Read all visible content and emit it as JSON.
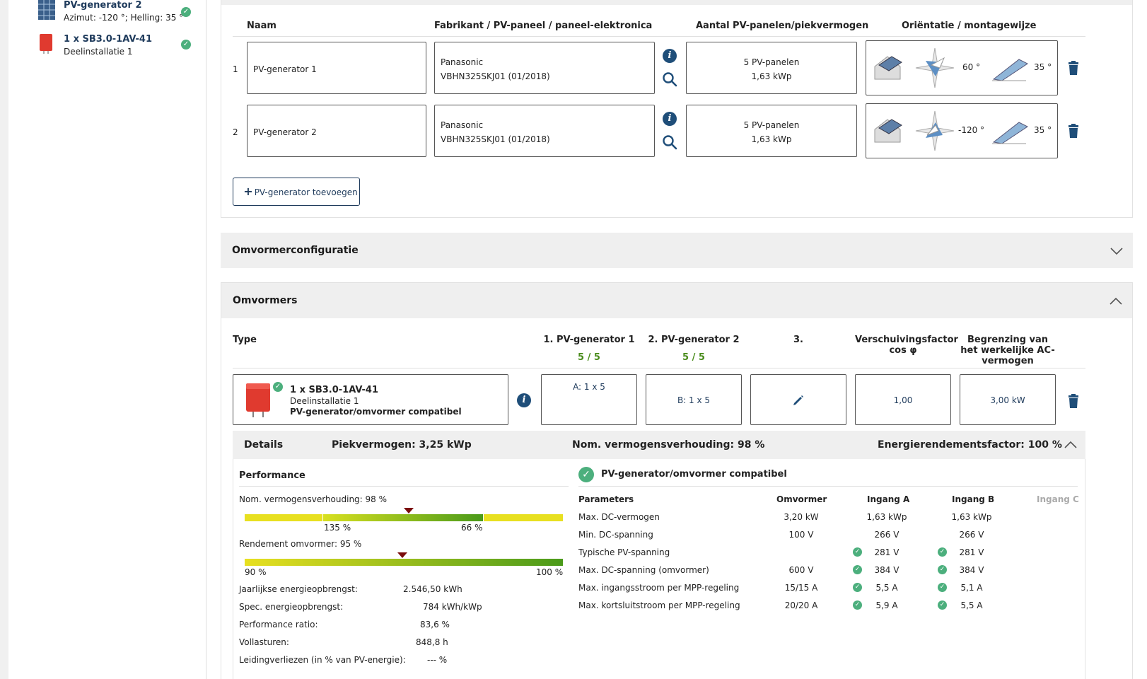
{
  "sidebar": {
    "items": [
      {
        "title": "PV-generator 2",
        "sub": "Azimut: -120 °; Helling: 35 °"
      },
      {
        "title": "1 x SB3.0-1AV-41",
        "sub": "Deelinstallatie 1"
      }
    ]
  },
  "pvgen": {
    "headers": {
      "naam": "Naam",
      "fabrikant": "Fabrikant / PV-paneel / paneel-elektronica",
      "aantal": "Aantal PV-panelen/piekvermogen",
      "orientatie": "Oriëntatie / montagewijze"
    },
    "rows": [
      {
        "num": "1",
        "naam": "PV-generator 1",
        "fab1": "Panasonic",
        "fab2": "VBHN325SKJ01 (01/2018)",
        "count": "5 PV-panelen",
        "power": "1,63 kWp",
        "azimuth": "60 °",
        "tilt": "35 °"
      },
      {
        "num": "2",
        "naam": "PV-generator 2",
        "fab1": "Panasonic",
        "fab2": "VBHN325SKJ01 (01/2018)",
        "count": "5 PV-panelen",
        "power": "1,63 kWp",
        "azimuth": "-120 °",
        "tilt": "35 °"
      }
    ],
    "add_button": "PV-generator toevoegen"
  },
  "sections": {
    "omvormerconfig": "Omvormerconfiguratie",
    "omvormers": "Omvormers"
  },
  "inverters": {
    "headers": {
      "type": "Type",
      "gen1": "1. PV-generator 1",
      "gen2": "2. PV-generator 2",
      "gen3": "3.",
      "cos": "Verschuivingsfactor cos φ",
      "limit": "Begrenzing van het werkelijke AC-vermogen"
    },
    "gen1_count": "5 / 5",
    "gen2_count": "5 / 5",
    "row": {
      "title": "1 x SB3.0-1AV-41",
      "sub": "Deelinstallatie 1",
      "compat": "PV-generator/omvormer compatibel",
      "a": "A: 1 x 5",
      "b": "B: 1 x 5",
      "cos": "1,00",
      "limit": "3,00 kW"
    }
  },
  "details": {
    "label": "Details",
    "peak": "Piekvermogen: 3,25 kWp",
    "ratio": "Nom. vermogensverhouding: 98 %",
    "efficiency": "Energierendementsfactor: 100 %"
  },
  "performance": {
    "title": "Performance",
    "ratio_label": "Nom. vermogensverhouding: 98 %",
    "ratio_left": "135 %",
    "ratio_right": "66 %",
    "rend_label": "Rendement omvormer: 95 %",
    "rend_left": "90 %",
    "rend_right": "100 %",
    "stats": [
      {
        "label": "Jaarlijkse energieopbrengst:",
        "value": "2.546,50 kWh"
      },
      {
        "label": "Spec. energieopbrengst:",
        "value": "784 kWh/kWp"
      },
      {
        "label": "Performance ratio:",
        "value": "83,6 %"
      },
      {
        "label": "Vollasturen:",
        "value": "848,8 h"
      },
      {
        "label": "Leidingverliezen (in % van PV-energie):",
        "value": "--- %"
      }
    ]
  },
  "compat": {
    "title": "PV-generator/omvormer compatibel",
    "headers": {
      "param": "Parameters",
      "omvormer": "Omvormer",
      "a": "Ingang A",
      "b": "Ingang B",
      "c": "Ingang C"
    },
    "rows": [
      {
        "param": "Max. DC-vermogen",
        "omv": "3,20 kW",
        "a": "1,63 kWp",
        "b": "1,63 kWp",
        "check": false
      },
      {
        "param": "Min. DC-spanning",
        "omv": "100 V",
        "a": "266 V",
        "b": "266 V",
        "check": false
      },
      {
        "param": "Typische PV-spanning",
        "omv": "",
        "a": "281 V",
        "b": "281 V",
        "check": true
      },
      {
        "param": "Max. DC-spanning (omvormer)",
        "omv": "600 V",
        "a": "384 V",
        "b": "384 V",
        "check": true
      },
      {
        "param": "Max. ingangsstroom per MPP-regeling",
        "omv": "15/15 A",
        "a": "5,5 A",
        "b": "5,1 A",
        "check": true
      },
      {
        "param": "Max. kortsluitstroom per MPP-regeling",
        "omv": "20/20 A",
        "a": "5,9 A",
        "b": "5,5 A",
        "check": true
      }
    ]
  }
}
